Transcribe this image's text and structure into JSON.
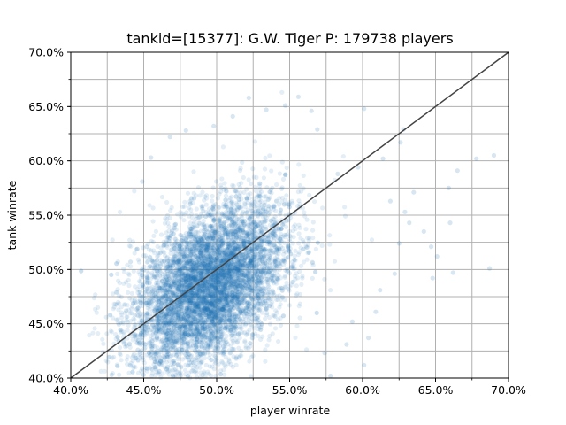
{
  "chart_data": {
    "type": "scatter",
    "title": "tankid=[15377]: G.W. Tiger P: 179738 players",
    "xlabel": "player winrate",
    "ylabel": "tank winrate",
    "xlim": [
      0.4,
      0.7
    ],
    "ylim": [
      0.4,
      0.7
    ],
    "xticks": [
      0.4,
      0.45,
      0.5,
      0.55,
      0.6,
      0.65,
      0.7
    ],
    "yticks": [
      0.4,
      0.45,
      0.5,
      0.55,
      0.6,
      0.65,
      0.7
    ],
    "xtick_labels": [
      "40.0%",
      "45.0%",
      "50.0%",
      "55.0%",
      "60.0%",
      "65.0%",
      "70.0%"
    ],
    "ytick_labels": [
      "40.0%",
      "45.0%",
      "50.0%",
      "55.0%",
      "60.0%",
      "65.0%",
      "70.0%"
    ],
    "minor_grid_step": 0.025,
    "grid": true,
    "point_color": "#1f77b4",
    "point_alpha": 0.12,
    "reference_line": {
      "from": [
        0.4,
        0.4
      ],
      "to": [
        0.7,
        0.7
      ],
      "color": "#444444"
    },
    "point_cloud": {
      "count": 179738,
      "center": [
        0.495,
        0.485
      ],
      "std": [
        0.026,
        0.038
      ],
      "correlation": 0.45
    },
    "outliers": [
      [
        0.687,
        0.501
      ],
      [
        0.69,
        0.605
      ],
      [
        0.678,
        0.602
      ],
      [
        0.665,
        0.591
      ],
      [
        0.659,
        0.575
      ],
      [
        0.66,
        0.543
      ],
      [
        0.662,
        0.497
      ],
      [
        0.651,
        0.512
      ],
      [
        0.647,
        0.521
      ],
      [
        0.648,
        0.492
      ],
      [
        0.635,
        0.571
      ],
      [
        0.632,
        0.543
      ],
      [
        0.625,
        0.524
      ],
      [
        0.622,
        0.496
      ],
      [
        0.612,
        0.481
      ],
      [
        0.609,
        0.461
      ],
      [
        0.604,
        0.437
      ],
      [
        0.601,
        0.412
      ],
      [
        0.578,
        0.402
      ],
      [
        0.589,
        0.431
      ],
      [
        0.642,
        0.535
      ],
      [
        0.629,
        0.553
      ],
      [
        0.619,
        0.563
      ],
      [
        0.614,
        0.602
      ],
      [
        0.626,
        0.617
      ],
      [
        0.628,
        0.629
      ],
      [
        0.601,
        0.648
      ],
      [
        0.522,
        0.658
      ],
      [
        0.534,
        0.647
      ],
      [
        0.547,
        0.651
      ],
      [
        0.511,
        0.641
      ],
      [
        0.565,
        0.646
      ],
      [
        0.569,
        0.629
      ],
      [
        0.441,
        0.507
      ],
      [
        0.452,
        0.521
      ],
      [
        0.438,
        0.462
      ],
      [
        0.432,
        0.411
      ],
      [
        0.446,
        0.426
      ],
      [
        0.428,
        0.403
      ],
      [
        0.593,
        0.452
      ],
      [
        0.574,
        0.423
      ],
      [
        0.468,
        0.622
      ],
      [
        0.479,
        0.628
      ],
      [
        0.498,
        0.632
      ],
      [
        0.556,
        0.659
      ],
      [
        0.547,
        0.587
      ],
      [
        0.583,
        0.588
      ],
      [
        0.597,
        0.594
      ],
      [
        0.455,
        0.603
      ],
      [
        0.449,
        0.581
      ]
    ]
  }
}
